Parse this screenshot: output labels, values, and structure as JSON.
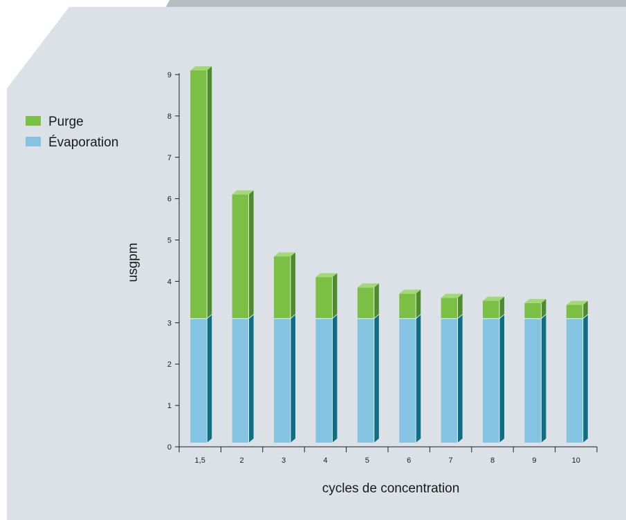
{
  "colors": {
    "background_panel": "#dce1e7",
    "top_bar": "#b7bcc1",
    "purge_front": "#7bc044",
    "purge_side": "#4e8a2e",
    "purge_top": "#a2d878",
    "evap_front": "#84c4e2",
    "evap_side": "#0f6d84",
    "evap_top": "#b4dcef"
  },
  "chart_data": {
    "type": "bar",
    "stacked": true,
    "three_d": true,
    "categories": [
      "1,5",
      "2",
      "3",
      "4",
      "5",
      "6",
      "7",
      "8",
      "9",
      "10"
    ],
    "series": [
      {
        "name": "Évaporation",
        "values": [
          3,
          3,
          3,
          3,
          3,
          3,
          3,
          3,
          3,
          3
        ]
      },
      {
        "name": "Purge",
        "values": [
          6,
          3,
          1.5,
          1,
          0.75,
          0.6,
          0.5,
          0.43,
          0.375,
          0.33
        ]
      }
    ],
    "ylim": [
      0,
      9
    ],
    "yticks": [
      0,
      1,
      2,
      3,
      4,
      5,
      6,
      7,
      8,
      9
    ],
    "xlabel": "cycles de concentration",
    "ylabel": "usgpm",
    "title": "",
    "grid": false,
    "legend": {
      "position": "left",
      "entries": [
        "Purge",
        "Évaporation"
      ]
    }
  }
}
